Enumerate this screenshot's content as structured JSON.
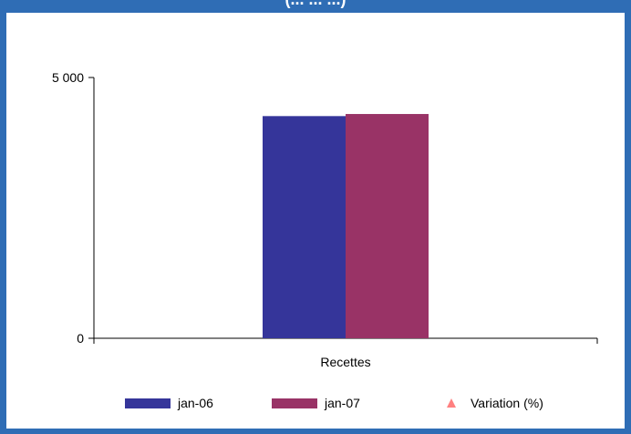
{
  "chart_data": {
    "type": "bar",
    "title": "(... ... ...)",
    "categories": [
      "Recettes"
    ],
    "series": [
      {
        "name": "jan-06",
        "values": [
          4260
        ],
        "color": "#35359a"
      },
      {
        "name": "jan-07",
        "values": [
          4300
        ],
        "color": "#993366"
      }
    ],
    "line_series": [
      {
        "name": "Variation (%)",
        "values": [],
        "marker": "triangle",
        "color": "#ff8080"
      }
    ],
    "ylim": [
      0,
      5000
    ],
    "yticks": [
      0,
      5000
    ],
    "ytick_labels": [
      "0",
      "5 000"
    ],
    "grid": false,
    "legend_position": "bottom"
  }
}
